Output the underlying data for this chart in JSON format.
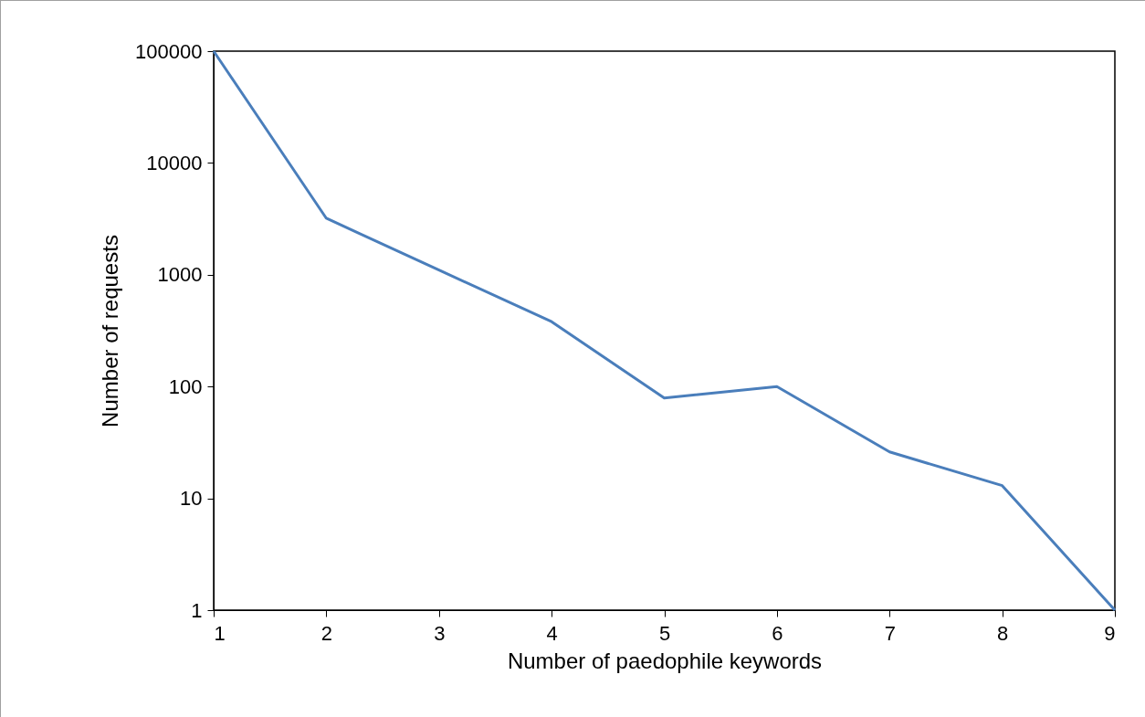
{
  "chart_data": {
    "type": "line",
    "xlabel": "Number of paedophile keywords",
    "ylabel": "Number of requests",
    "x": [
      1,
      2,
      3,
      4,
      5,
      6,
      7,
      8,
      9
    ],
    "series": [
      {
        "color": "#4a7ebb",
        "values": [
          100000,
          3200,
          1100,
          380,
          79,
          100,
          26,
          13,
          1
        ]
      }
    ],
    "xlim": [
      1,
      9
    ],
    "xticks": [
      1,
      2,
      3,
      4,
      5,
      6,
      7,
      8,
      9
    ],
    "ylim": [
      1,
      100000
    ],
    "yticks": [
      1,
      10,
      100,
      1000,
      10000,
      100000
    ],
    "log": "y",
    "grid": false,
    "marker": "none",
    "line_style": "solid"
  }
}
